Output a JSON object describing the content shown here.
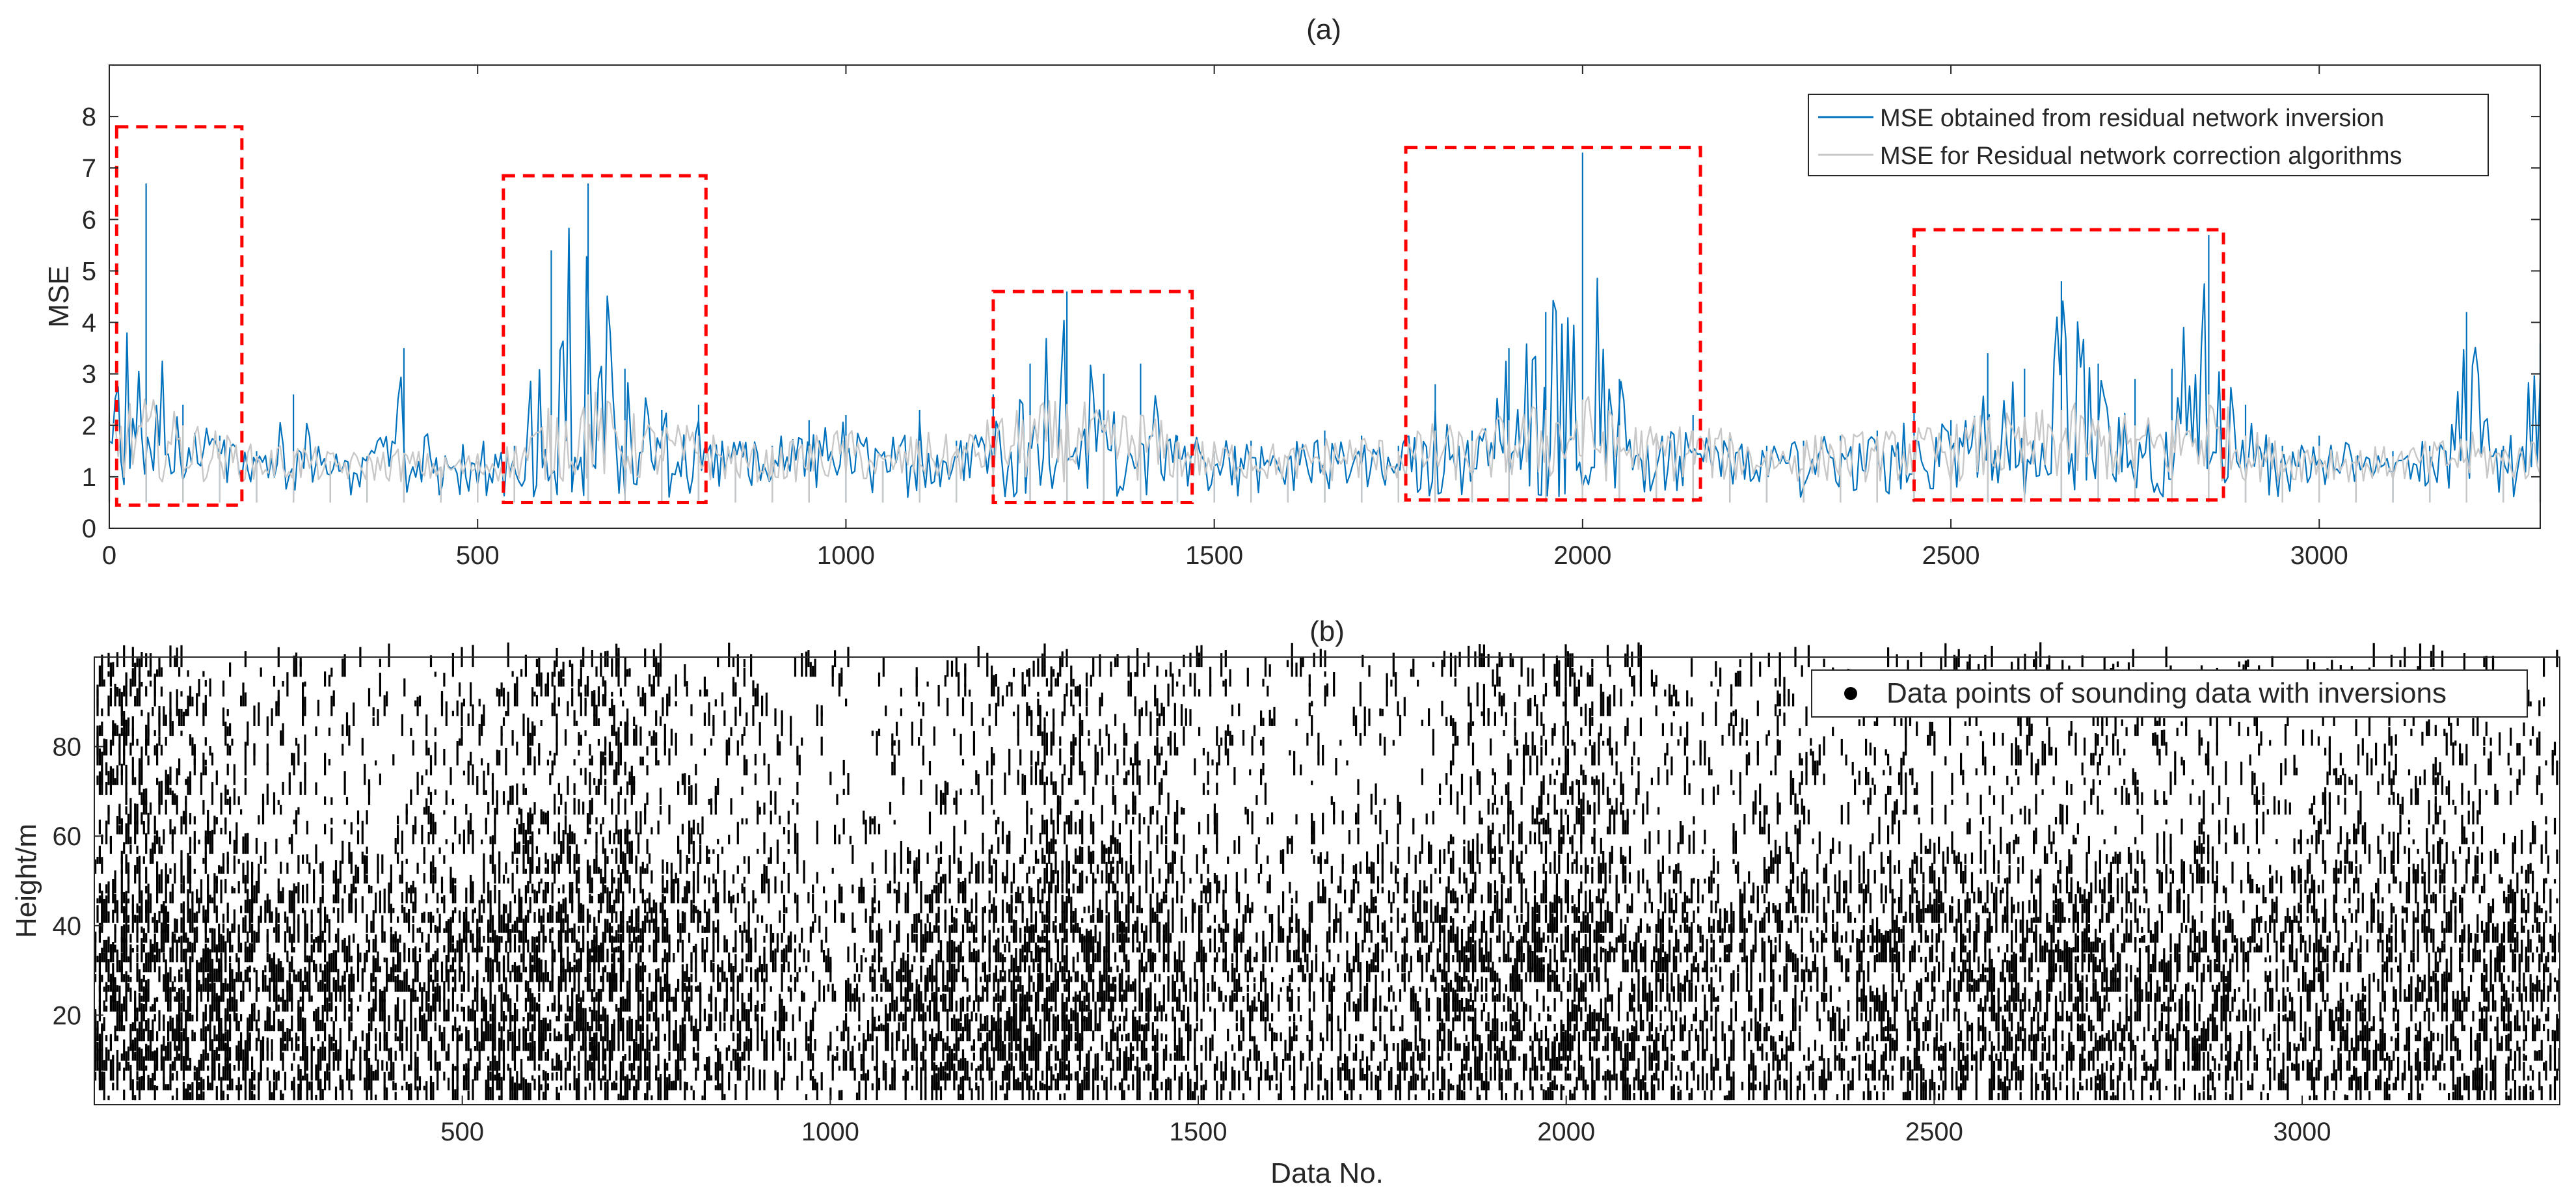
{
  "chart_data": [
    {
      "panel": "(a)",
      "type": "line",
      "title": "(a)",
      "xlabel": "",
      "ylabel": "MSE",
      "xlim": [
        0,
        3300
      ],
      "ylim": [
        0,
        9
      ],
      "xticks": [
        0,
        500,
        1000,
        1500,
        2000,
        2500,
        3000
      ],
      "yticks": [
        0,
        1,
        2,
        3,
        4,
        5,
        6,
        7,
        8
      ],
      "grid": false,
      "legend_position": "top-right",
      "series": [
        {
          "name": "MSE obtained from residual network inversion",
          "color": "#0072BD",
          "x": [
            0,
            50,
            100,
            150,
            200,
            250,
            300,
            350,
            400,
            450,
            500,
            550,
            600,
            650,
            700,
            750,
            800,
            850,
            900,
            950,
            1000,
            1050,
            1100,
            1150,
            1200,
            1250,
            1300,
            1350,
            1400,
            1450,
            1500,
            1550,
            1600,
            1650,
            1700,
            1750,
            1800,
            1850,
            1900,
            1950,
            2000,
            2050,
            2100,
            2150,
            2200,
            2250,
            2300,
            2350,
            2400,
            2450,
            2500,
            2550,
            2600,
            2650,
            2700,
            2750,
            2800,
            2850,
            2900,
            2950,
            3000,
            3050,
            3100,
            3150,
            3200,
            3250,
            3300
          ],
          "values": [
            2.1,
            6.7,
            2.4,
            1.8,
            1.5,
            2.6,
            1.3,
            1.4,
            3.5,
            1.2,
            1.3,
            1.6,
            5.4,
            6.7,
            3.1,
            2.3,
            2.4,
            1.5,
            1.6,
            2.1,
            2.2,
            1.3,
            2.3,
            1.7,
            2.6,
            3.2,
            4.6,
            3.0,
            3.2,
            1.8,
            1.5,
            1.7,
            1.4,
            1.9,
            1.8,
            1.6,
            2.8,
            1.9,
            3.5,
            4.2,
            7.3,
            2.9,
            1.8,
            2.2,
            1.8,
            1.6,
            1.7,
            1.8,
            1.9,
            2.3,
            2.1,
            3.4,
            3.1,
            4.8,
            3.2,
            2.9,
            3.1,
            5.7,
            2.4,
            1.6,
            1.8,
            1.4,
            1.5,
            1.6,
            4.2,
            1.6,
            3.6
          ]
        },
        {
          "name": "MSE for Residual network correction algorithms",
          "color": "#C8C8C8",
          "x": [
            0,
            50,
            100,
            150,
            200,
            250,
            300,
            350,
            400,
            450,
            500,
            550,
            600,
            650,
            700,
            750,
            800,
            850,
            900,
            950,
            1000,
            1050,
            1100,
            1150,
            1200,
            1250,
            1300,
            1350,
            1400,
            1450,
            1500,
            1550,
            1600,
            1650,
            1700,
            1750,
            1800,
            1850,
            1900,
            1950,
            2000,
            2050,
            2100,
            2150,
            2200,
            2250,
            2300,
            2350,
            2400,
            2450,
            2500,
            2550,
            2600,
            2650,
            2700,
            2750,
            2800,
            2850,
            2900,
            2950,
            3000,
            3050,
            3100,
            3150,
            3200,
            3250,
            3300
          ],
          "values": [
            2.2,
            2.4,
            2.0,
            1.7,
            1.4,
            1.5,
            1.3,
            1.3,
            1.4,
            1.2,
            1.3,
            1.5,
            2.2,
            2.6,
            2.1,
            1.9,
            1.8,
            1.5,
            1.4,
            1.6,
            1.8,
            1.3,
            1.7,
            1.6,
            2.0,
            2.2,
            2.4,
            2.1,
            2.2,
            1.7,
            1.5,
            1.6,
            1.4,
            1.6,
            1.7,
            1.5,
            1.9,
            1.7,
            2.1,
            2.3,
            2.5,
            2.0,
            1.8,
            1.9,
            1.7,
            1.5,
            1.6,
            1.7,
            1.7,
            1.8,
            1.8,
            2.1,
            2.0,
            2.3,
            2.1,
            2.0,
            2.1,
            2.6,
            1.8,
            1.5,
            1.6,
            1.4,
            1.4,
            1.5,
            1.7,
            1.5,
            1.6
          ]
        }
      ],
      "annotations": [
        {
          "type": "dashed-box",
          "color": "#FF0000",
          "x_range": [
            10,
            180
          ],
          "y_range": [
            0.45,
            7.8
          ]
        },
        {
          "type": "dashed-box",
          "color": "#FF0000",
          "x_range": [
            535,
            810
          ],
          "y_range": [
            0.5,
            6.85
          ]
        },
        {
          "type": "dashed-box",
          "color": "#FF0000",
          "x_range": [
            1200,
            1470
          ],
          "y_range": [
            0.5,
            4.6
          ]
        },
        {
          "type": "dashed-box",
          "color": "#FF0000",
          "x_range": [
            1760,
            2160
          ],
          "y_range": [
            0.55,
            7.4
          ]
        },
        {
          "type": "dashed-box",
          "color": "#FF0000",
          "x_range": [
            2450,
            2870
          ],
          "y_range": [
            0.55,
            5.8
          ]
        }
      ]
    },
    {
      "panel": "(b)",
      "type": "scatter",
      "title": "(b)",
      "xlabel": "Data No.",
      "ylabel": "Height/m",
      "xlim": [
        0,
        3350
      ],
      "ylim": [
        0,
        100
      ],
      "xticks": [
        500,
        1000,
        1500,
        2000,
        2500,
        3000
      ],
      "yticks": [
        20,
        40,
        60,
        80
      ],
      "grid": false,
      "legend_position": "top-right",
      "series": [
        {
          "name": "Data points of sounding data with inversions",
          "color": "#000000",
          "marker": "dot",
          "density_x": [
            0,
            100,
            200,
            300,
            400,
            500,
            600,
            700,
            800,
            900,
            1000,
            1100,
            1200,
            1300,
            1400,
            1500,
            1600,
            1700,
            1800,
            1900,
            2000,
            2100,
            2200,
            2300,
            2400,
            2500,
            2600,
            2700,
            2800,
            2900,
            3000,
            3100,
            3200,
            3300
          ],
          "density_low_height": [
            0.85,
            0.8,
            0.7,
            0.6,
            0.55,
            0.65,
            0.75,
            0.7,
            0.6,
            0.5,
            0.25,
            0.7,
            0.75,
            0.8,
            0.75,
            0.5,
            0.45,
            0.4,
            0.6,
            0.65,
            0.75,
            0.6,
            0.5,
            0.45,
            0.5,
            0.6,
            0.55,
            0.65,
            0.6,
            0.5,
            0.45,
            0.55,
            0.6,
            0.55
          ],
          "density_high_height": [
            0.45,
            0.35,
            0.2,
            0.15,
            0.12,
            0.2,
            0.35,
            0.4,
            0.2,
            0.15,
            0.08,
            0.1,
            0.15,
            0.35,
            0.25,
            0.15,
            0.12,
            0.1,
            0.15,
            0.25,
            0.4,
            0.2,
            0.15,
            0.2,
            0.15,
            0.2,
            0.25,
            0.25,
            0.2,
            0.15,
            0.15,
            0.2,
            0.2,
            0.2
          ]
        }
      ]
    }
  ]
}
